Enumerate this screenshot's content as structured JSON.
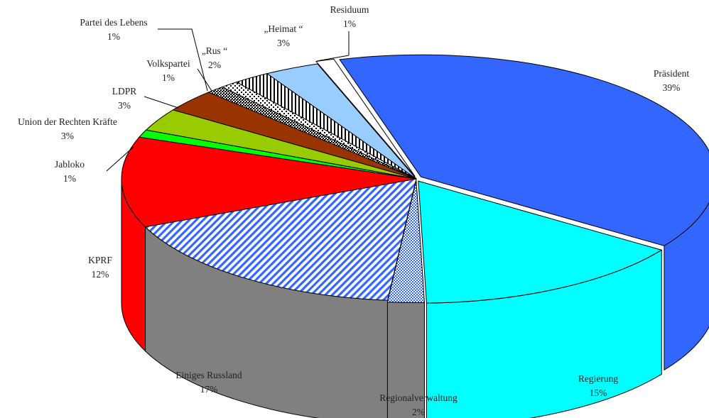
{
  "chart_data": {
    "type": "pie",
    "style": "3d-exploded-tilted",
    "slices": [
      {
        "name": "Präsident",
        "value": 39,
        "label": "39%",
        "color": "#3366FF",
        "pattern": "solid"
      },
      {
        "name": "Regierung",
        "value": 15,
        "label": "15%",
        "color": "#00FFFF",
        "pattern": "solid"
      },
      {
        "name": "Regionalverwaltung",
        "value": 2,
        "label": "2%",
        "color": "#3366FF",
        "pattern": "checker"
      },
      {
        "name": "Einiges Russland",
        "value": 17,
        "label": "17%",
        "color": "#3366FF",
        "pattern": "diagonal"
      },
      {
        "name": "KPRF",
        "value": 12,
        "label": "12%",
        "color": "#FF0000",
        "pattern": "solid"
      },
      {
        "name": "Jabloko",
        "value": 1,
        "label": "1%",
        "color": "#00FF00",
        "pattern": "solid"
      },
      {
        "name": "Union der Rechten Kräfte",
        "value": 3,
        "label": "3%",
        "color": "#99CC00",
        "pattern": "solid"
      },
      {
        "name": "LDPR",
        "value": 3,
        "label": "3%",
        "color": "#993300",
        "pattern": "solid"
      },
      {
        "name": "Partei des Lebens",
        "value": 1,
        "label": "1%",
        "color": "#000000",
        "pattern": "checker-dark"
      },
      {
        "name": "Volkspartei",
        "value": 1,
        "label": "1%",
        "color": "#000000",
        "pattern": "checker-light"
      },
      {
        "name": "„Rus “",
        "value": 2,
        "label": "2%",
        "color": "#000000",
        "pattern": "vertical"
      },
      {
        "name": "„Heimat “",
        "value": 3,
        "label": "3%",
        "color": "#99CCFF",
        "pattern": "solid"
      },
      {
        "name": "Residuum",
        "value": 1,
        "label": "1%",
        "color": "#FFFFFF",
        "pattern": "solid"
      }
    ],
    "title": "",
    "legend": "none"
  }
}
